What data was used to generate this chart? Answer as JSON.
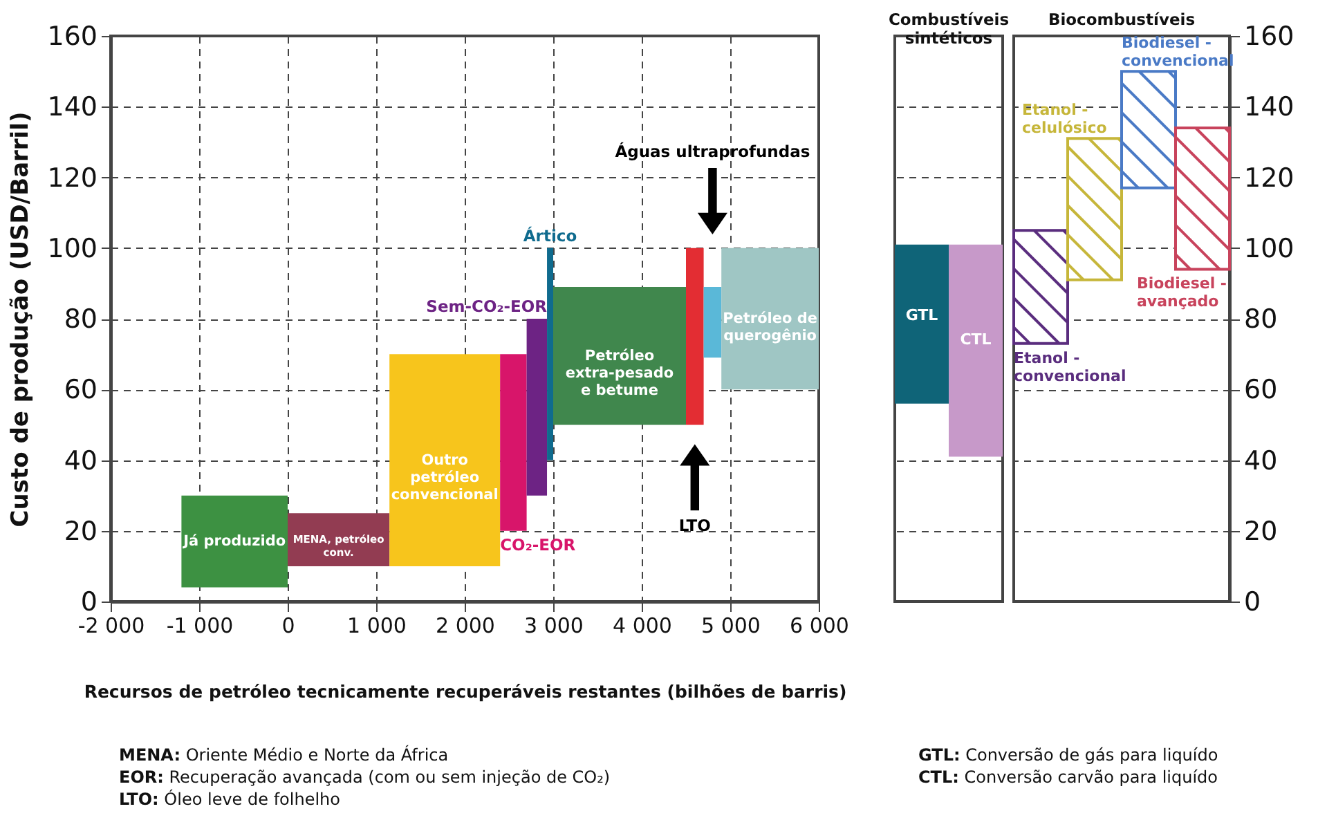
{
  "chart_data": [
    {
      "type": "histogram",
      "xlabel": "Recursos de petróleo tecnicamente recuperáveis restantes (bilhões de barris)",
      "ylabel": "Custo de produção (USD/Barril)",
      "xlim": [
        -2000,
        6000
      ],
      "xticks": [
        {
          "value": -2000,
          "label": "-2 000"
        },
        {
          "value": -1000,
          "label": "-1 000"
        },
        0,
        {
          "value": 1000,
          "label": "1 000"
        },
        {
          "value": 2000,
          "label": "2 000"
        },
        {
          "value": 3000,
          "label": "3 000"
        },
        {
          "value": 4000,
          "label": "4 000"
        },
        {
          "value": 5000,
          "label": "5 000"
        },
        {
          "value": 6000,
          "label": "6 000"
        }
      ],
      "ylim": [
        0,
        160
      ],
      "yticks": [
        0,
        20,
        40,
        60,
        80,
        100,
        120,
        140,
        160
      ],
      "grid": true,
      "bins": [
        -1200,
        0,
        1150,
        2400,
        2700,
        2930,
        3000,
        4500,
        4700,
        4900,
        6000
      ],
      "base": [
        4,
        10,
        10,
        20,
        30,
        40,
        50,
        50,
        69,
        60
      ],
      "values": [
        26,
        15,
        60,
        50,
        50,
        60,
        39,
        50,
        20,
        40
      ],
      "colors": [
        "#3d9142",
        "#923c52",
        "#f7c51c",
        "#d8156a",
        "#6d2384",
        "#0f6b8e",
        "#40874d",
        "#e32d33",
        "#5ab8d8",
        "#9fc6c4"
      ],
      "annotations": [
        "Já produzido",
        "MENA, petróleo\nconv.",
        "Outro\npetróleo\nconvencional",
        "CO₂-EOR",
        "Sem-CO₂-EOR",
        "Ártico",
        "Petróleo\nextra-pesado\ne betume",
        "LTO",
        "Águas ultraprofundas",
        "Petróleo de\nquerogênio",
        "MENA: Oriente Médio e Norte da África",
        "EOR: Recuperação avançada (com ou sem injeção de CO₂)",
        "LTO: Óleo leve de folhelho"
      ]
    },
    {
      "type": "bar",
      "title": "Combustíveis\nsintéticos",
      "categories": [
        null,
        null
      ],
      "base": [
        56,
        41
      ],
      "values": [
        45,
        60
      ],
      "colors": [
        "#0f6478",
        "#c799c9"
      ],
      "ylim": [
        0,
        160
      ],
      "yticks": [
        0,
        20,
        40,
        60,
        80,
        100,
        120,
        140,
        160
      ],
      "grid": "y",
      "tick_labels": false,
      "annotations": [
        "GTL",
        "CTL",
        "GTL: Conversão de gás para liquído",
        "CTL: Conversão carvão para liquído"
      ]
    },
    {
      "type": "bar",
      "title": "Biocombustíveis",
      "categories": [
        null,
        null,
        null,
        null
      ],
      "base": [
        73,
        91,
        117,
        94
      ],
      "values": [
        32,
        40,
        33,
        40
      ],
      "colors": [
        "#5a2d7e",
        "#c6b63a",
        "#4a7ac6",
        "#c8435c"
      ],
      "ylim": [
        0,
        160
      ],
      "yticks": [
        0,
        20,
        40,
        60,
        80,
        100,
        120,
        140,
        160
      ],
      "grid": "y",
      "tick_labels": "y",
      "annotations": [
        "Etanol -\nconvencional",
        "Etanol -\ncelulósico",
        "Biodiesel -\nconvencional",
        "Biodiesel -\navançado"
      ]
    }
  ]
}
